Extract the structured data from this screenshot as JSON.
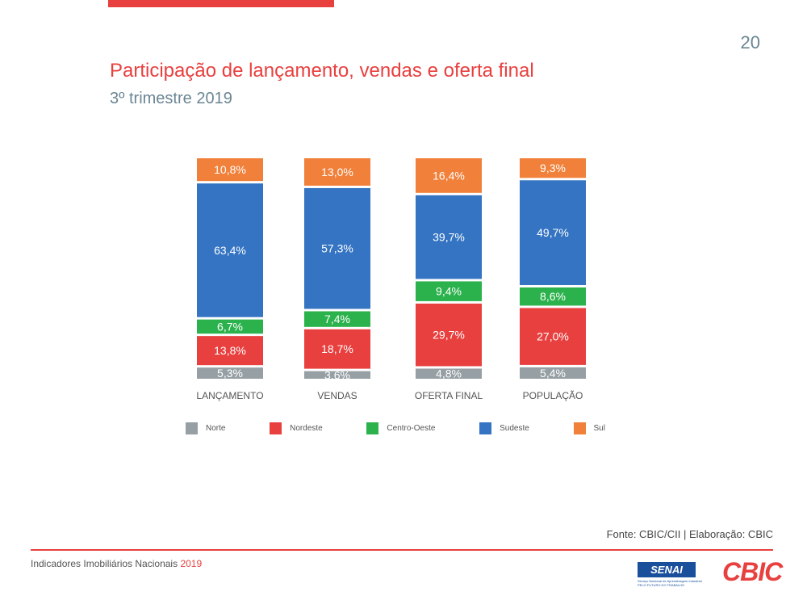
{
  "page_number": "20",
  "header": {
    "title": "Participação de lançamento, vendas e oferta final",
    "subtitle": "3º trimestre 2019"
  },
  "chart_data": {
    "type": "bar",
    "stacked": true,
    "normalized": true,
    "categories": [
      "LANÇAMENTO",
      "VENDAS",
      "OFERTA FINAL",
      "POPULAÇÃO"
    ],
    "series": [
      {
        "name": "Norte",
        "color": "#969fa3",
        "values": [
          5.3,
          3.6,
          4.8,
          5.4
        ],
        "labels": [
          "5,3%",
          "3,6%",
          "4,8%",
          "5,4%"
        ]
      },
      {
        "name": "Nordeste",
        "color": "#e8403f",
        "values": [
          13.8,
          18.7,
          29.7,
          27.0
        ],
        "labels": [
          "13,8%",
          "18,7%",
          "29,7%",
          "27,0%"
        ]
      },
      {
        "name": "Centro-Oeste",
        "color": "#2bb24c",
        "values": [
          6.7,
          7.4,
          9.4,
          8.6
        ],
        "labels": [
          "6,7%",
          "7,4%",
          "9,4%",
          "8,6%"
        ]
      },
      {
        "name": "Sudeste",
        "color": "#3474c2",
        "values": [
          63.4,
          57.3,
          39.7,
          49.7
        ],
        "labels": [
          "63,4%",
          "57,3%",
          "39,7%",
          "49,7%"
        ]
      },
      {
        "name": "Sul",
        "color": "#f0803a",
        "values": [
          10.8,
          13.0,
          16.4,
          9.3
        ],
        "labels": [
          "10,8%",
          "13,0%",
          "16,4%",
          "9,3%"
        ]
      }
    ],
    "ylim": [
      0,
      100
    ],
    "grid": false,
    "legend_position": "bottom"
  },
  "footer": {
    "source": "Fonte: CBIC/CII | Elaboração: CBIC",
    "report_name": "Indicadores Imobiliários Nacionais",
    "year": "2019",
    "senai_logo_text": "SENAI",
    "senai_line1": "Serviço Nacional de Aprendizagem Industrial",
    "senai_line2": "PELO FUTURO DO TRABALHO",
    "cbic_logo_text": "CBIC"
  }
}
